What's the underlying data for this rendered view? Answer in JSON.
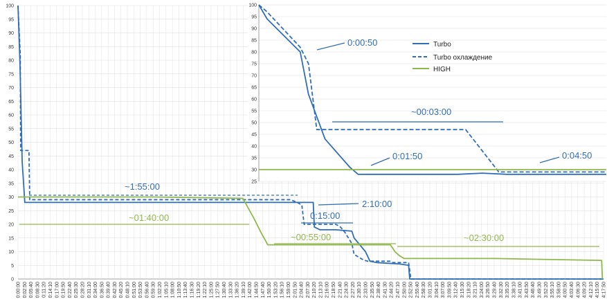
{
  "colors": {
    "turbo": "#2f6db5",
    "high": "#8fb84a",
    "grid": "#d9d9d9",
    "axis": "#888888"
  },
  "chart_data": [
    {
      "type": "line",
      "grid": true,
      "ylim": [
        0,
        100
      ],
      "y_ticks": [
        0,
        5,
        10,
        15,
        20,
        25,
        30,
        35,
        40,
        45,
        50,
        55,
        60,
        65,
        70,
        75,
        80,
        85,
        90,
        95,
        100
      ],
      "xlim_seconds": [
        0,
        15470
      ],
      "x_tick_labels": [
        "0:00:00",
        "0:02:50",
        "0:05:40",
        "0:08:30",
        "0:11:20",
        "0:14:10",
        "0:17:00",
        "0:19:50",
        "0:22:40",
        "0:25:30",
        "0:28:20",
        "0:31:10",
        "0:34:00",
        "0:36:50",
        "0:39:40",
        "0:42:30",
        "0:45:20",
        "0:48:10",
        "0:51:00",
        "0:53:50",
        "0:56:40",
        "0:59:30",
        "1:02:20",
        "1:05:10",
        "1:08:00",
        "1:10:50",
        "1:13:40",
        "1:16:30",
        "1:19:20",
        "1:22:10",
        "1:25:00",
        "1:27:50",
        "1:30:40",
        "1:33:30",
        "1:36:20",
        "1:39:10",
        "1:42:00",
        "1:44:50",
        "1:47:40",
        "1:50:30",
        "1:53:20",
        "1:56:10",
        "1:59:00",
        "2:01:50",
        "2:04:40",
        "2:07:30",
        "2:10:20",
        "2:13:10",
        "2:16:00",
        "2:18:50",
        "2:21:40",
        "2:24:30",
        "2:27:20",
        "2:30:10",
        "2:33:00",
        "2:35:50",
        "2:38:40",
        "2:41:30",
        "2:44:20",
        "2:47:10",
        "2:50:00",
        "2:52:50",
        "2:55:40",
        "2:58:30",
        "3:01:20",
        "3:04:10",
        "3:07:00",
        "3:09:50",
        "3:12:40",
        "3:15:30",
        "3:18:20",
        "3:21:10",
        "3:24:00",
        "3:26:50",
        "3:29:40",
        "3:32:30",
        "3:35:20",
        "3:38:10",
        "3:41:00",
        "3:43:50",
        "3:46:40",
        "3:49:30",
        "3:52:20",
        "3:55:10",
        "3:58:00",
        "4:00:50",
        "4:03:40",
        "4:06:30",
        "4:09:20",
        "4:12:10",
        "4:15:00",
        "4:17:50"
      ],
      "series": [
        {
          "key": "turbo",
          "color_key": "turbo",
          "style": "solid",
          "x": [
            "0:00:00",
            "0:00:50",
            "0:01:50",
            "0:03:00",
            "0:30:00",
            "1:00:00",
            "1:30:00",
            "2:00:00",
            "2:10:00",
            "2:10:30",
            "2:13:00",
            "2:20:00",
            "2:27:00",
            "2:28:00",
            "2:33:00",
            "2:35:00",
            "2:38:00",
            "2:48:00",
            "2:52:00",
            "2:52:30",
            "4:17:50"
          ],
          "y": [
            100,
            80,
            43,
            28,
            28,
            28,
            28,
            28,
            28,
            19,
            18,
            18,
            17.5,
            15,
            10,
            6.5,
            6,
            5.5,
            5,
            0,
            0
          ]
        },
        {
          "key": "turbo-cooling",
          "color_key": "turbo",
          "style": "dashed",
          "x": [
            "0:00:00",
            "0:01:00",
            "0:01:10",
            "0:04:50",
            "0:05:10",
            "1:30:00",
            "2:00:00",
            "2:03:00",
            "2:05:00",
            "2:06:00",
            "2:20:00",
            "2:22:00",
            "2:24:00",
            "2:27:00",
            "2:28:00",
            "2:32:00",
            "2:34:00",
            "2:40:00",
            "2:44:00",
            "2:45:00",
            "2:50:00",
            "2:52:00",
            "2:53:00",
            "3:09:00",
            "4:17:50"
          ],
          "y": [
            100,
            82,
            47,
            47,
            29,
            29,
            29,
            28,
            27,
            20,
            20,
            19,
            17,
            13,
            9,
            7,
            6.5,
            6.5,
            6.5,
            6,
            6,
            6,
            0,
            0,
            0
          ]
        },
        {
          "key": "high",
          "color_key": "high",
          "style": "solid",
          "x": [
            "0:00:00",
            "0:30:00",
            "1:00:00",
            "1:39:00",
            "1:42:00",
            "1:44:00",
            "1:47:00",
            "1:50:00",
            "2:00:00",
            "2:30:00",
            "2:44:00",
            "2:46:00",
            "2:48:00",
            "2:50:00",
            "3:30:00",
            "4:17:00",
            "4:17:20"
          ],
          "y": [
            30,
            30,
            30,
            29.5,
            25,
            22,
            17,
            12.5,
            12.5,
            12.5,
            12.5,
            10,
            8.5,
            7.5,
            7.5,
            6.8,
            0
          ]
        }
      ],
      "annotations": [
        "~1:55:00",
        "2:10:00",
        "~01:40:00",
        "0:15:00",
        "~00:55:00",
        "~02:30:00"
      ]
    },
    {
      "type": "line",
      "inset": true,
      "grid": true,
      "ylim": [
        25,
        100
      ],
      "y_ticks": [
        25,
        30,
        35,
        40,
        45,
        50,
        55,
        60,
        65,
        70,
        75,
        80,
        85,
        90,
        95,
        100
      ],
      "legend": {
        "placement": "top-right",
        "entries": [
          "Turbo",
          "Turbo охлаждение",
          "HIGH"
        ]
      },
      "series": [
        {
          "name": "Turbo",
          "color_key": "turbo",
          "style": "solid",
          "x": [
            "0:00:00",
            "0:00:10",
            "0:00:50",
            "0:01:00",
            "0:01:20",
            "0:01:50",
            "0:02:00",
            "0:03:00",
            "0:04:00",
            "0:04:30",
            "0:05:00",
            "0:07:00"
          ],
          "y": [
            100,
            94,
            80,
            62,
            43,
            31,
            28,
            28,
            28,
            28.5,
            28,
            28
          ]
        },
        {
          "name": "Turbo охлаждение",
          "color_key": "turbo",
          "style": "dashed",
          "x": [
            "0:00:00",
            "0:00:10",
            "0:00:50",
            "0:01:00",
            "0:01:10",
            "0:04:10",
            "0:04:50",
            "0:05:00",
            "0:07:00"
          ],
          "y": [
            100,
            97,
            82,
            75,
            47,
            47,
            29,
            29,
            29
          ]
        },
        {
          "name": "HIGH",
          "color_key": "high",
          "style": "solid",
          "x": [
            "0:00:00",
            "0:07:00"
          ],
          "y": [
            30,
            30
          ]
        }
      ],
      "annotations": [
        "0:00:50",
        "~00:03:00",
        "0:01:50",
        "0:04:50"
      ]
    }
  ]
}
